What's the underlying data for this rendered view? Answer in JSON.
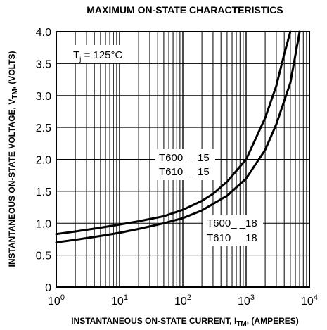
{
  "chart_data": {
    "type": "line",
    "title": "MAXIMUM ON-STATE CHARACTERISTICS",
    "xlabel": {
      "main": "INSTANTANEOUS ON-STATE CURRENT, I",
      "sub": "TM",
      "tail": ", (AMPERES)"
    },
    "ylabel": {
      "main": "INSTANTANEOUS ON-STATE VOLTAGE, V",
      "sub": "TM",
      "tail": ", (VOLTS)"
    },
    "x_scale": "log",
    "xlim": [
      1,
      10000
    ],
    "ylim": [
      0,
      4.0
    ],
    "x_tick_labels": [
      {
        "base": "10",
        "exp": "0",
        "value": 1
      },
      {
        "base": "10",
        "exp": "1",
        "value": 10
      },
      {
        "base": "10",
        "exp": "2",
        "value": 100
      },
      {
        "base": "10",
        "exp": "3",
        "value": 1000
      },
      {
        "base": "10",
        "exp": "4",
        "value": 10000
      }
    ],
    "y_ticks": [
      "0",
      "0.5",
      "1.0",
      "1.5",
      "2.0",
      "2.5",
      "3.0",
      "3.5",
      "4.0"
    ],
    "grid": true,
    "condition": {
      "main": "T",
      "sub": "j",
      "tail": " = 125°C"
    },
    "series": [
      {
        "name": "T600__15 / T610__15",
        "label_lines": [
          "T600_ _15",
          "T610_ _15"
        ],
        "x": [
          1,
          2,
          5,
          10,
          20,
          50,
          100,
          200,
          300,
          500,
          1000,
          2000,
          3000,
          4000,
          5000
        ],
        "y": [
          0.83,
          0.87,
          0.93,
          0.98,
          1.03,
          1.11,
          1.21,
          1.35,
          1.46,
          1.65,
          2.0,
          2.65,
          3.15,
          3.65,
          4.0
        ]
      },
      {
        "name": "T600__18 / T610__18",
        "label_lines": [
          "T600_ _18",
          "T610_ _18"
        ],
        "x": [
          1,
          2,
          5,
          10,
          20,
          50,
          100,
          200,
          500,
          1000,
          2000,
          3000,
          5000,
          7000
        ],
        "y": [
          0.7,
          0.74,
          0.8,
          0.85,
          0.91,
          1.0,
          1.08,
          1.2,
          1.43,
          1.7,
          2.15,
          2.55,
          3.2,
          4.0
        ]
      }
    ]
  }
}
